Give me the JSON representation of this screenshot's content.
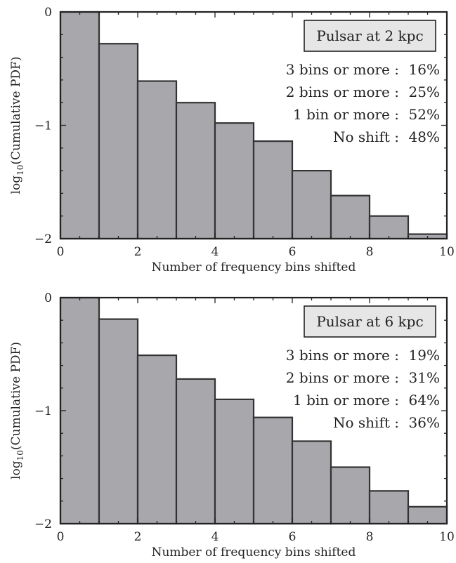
{
  "chart_data": [
    {
      "type": "bar",
      "title": "",
      "xlabel": "Number of frequency bins shifted",
      "ylabel_base": "log",
      "ylabel_sub": "10",
      "ylabel_rest": "(Cumulative PDF)",
      "xlim": [
        0,
        10
      ],
      "ylim": [
        -2,
        0
      ],
      "x_ticks": [
        0,
        2,
        4,
        6,
        8,
        10
      ],
      "y_ticks": [
        {
          "value": 0,
          "label": "0"
        },
        {
          "value": -1,
          "label": "−1"
        },
        {
          "value": -2,
          "label": "−2"
        }
      ],
      "bins": [
        {
          "x0": 0,
          "x1": 1,
          "value": 0.0
        },
        {
          "x0": 1,
          "x1": 2,
          "value": -0.28
        },
        {
          "x0": 2,
          "x1": 3,
          "value": -0.61
        },
        {
          "x0": 3,
          "x1": 4,
          "value": -0.8
        },
        {
          "x0": 4,
          "x1": 5,
          "value": -0.98
        },
        {
          "x0": 5,
          "x1": 6,
          "value": -1.14
        },
        {
          "x0": 6,
          "x1": 7,
          "value": -1.4
        },
        {
          "x0": 7,
          "x1": 8,
          "value": -1.62
        },
        {
          "x0": 8,
          "x1": 9,
          "value": -1.8
        },
        {
          "x0": 9,
          "x1": 10,
          "value": -1.96
        }
      ],
      "legend_box": "Pulsar at 2 kpc",
      "annotations": [
        {
          "label": "3 bins or more :",
          "value": "16%"
        },
        {
          "label": "2 bins or more :",
          "value": "25%"
        },
        {
          "label": "1 bin or more :",
          "value": "52%"
        },
        {
          "label": "No shift :",
          "value": "48%"
        }
      ],
      "legend_placement": "top-right",
      "bar_color": "#a8a8ac",
      "edge_color": "#333333"
    },
    {
      "type": "bar",
      "title": "",
      "xlabel": "Number of frequency bins shifted",
      "ylabel_base": "log",
      "ylabel_sub": "10",
      "ylabel_rest": "(Cumulative PDF)",
      "xlim": [
        0,
        10
      ],
      "ylim": [
        -2,
        0
      ],
      "x_ticks": [
        0,
        2,
        4,
        6,
        8,
        10
      ],
      "y_ticks": [
        {
          "value": 0,
          "label": "0"
        },
        {
          "value": -1,
          "label": "−1"
        },
        {
          "value": -2,
          "label": "−2"
        }
      ],
      "bins": [
        {
          "x0": 0,
          "x1": 1,
          "value": 0.0
        },
        {
          "x0": 1,
          "x1": 2,
          "value": -0.19
        },
        {
          "x0": 2,
          "x1": 3,
          "value": -0.51
        },
        {
          "x0": 3,
          "x1": 4,
          "value": -0.72
        },
        {
          "x0": 4,
          "x1": 5,
          "value": -0.9
        },
        {
          "x0": 5,
          "x1": 6,
          "value": -1.06
        },
        {
          "x0": 6,
          "x1": 7,
          "value": -1.27
        },
        {
          "x0": 7,
          "x1": 8,
          "value": -1.5
        },
        {
          "x0": 8,
          "x1": 9,
          "value": -1.71
        },
        {
          "x0": 9,
          "x1": 10,
          "value": -1.85
        }
      ],
      "legend_box": "Pulsar at 6 kpc",
      "annotations": [
        {
          "label": "3 bins or more :",
          "value": "19%"
        },
        {
          "label": "2 bins or more :",
          "value": "31%"
        },
        {
          "label": "1 bin or more :",
          "value": "64%"
        },
        {
          "label": "No shift :",
          "value": "36%"
        }
      ],
      "legend_placement": "top-right",
      "bar_color": "#a8a8ac",
      "edge_color": "#333333"
    }
  ]
}
